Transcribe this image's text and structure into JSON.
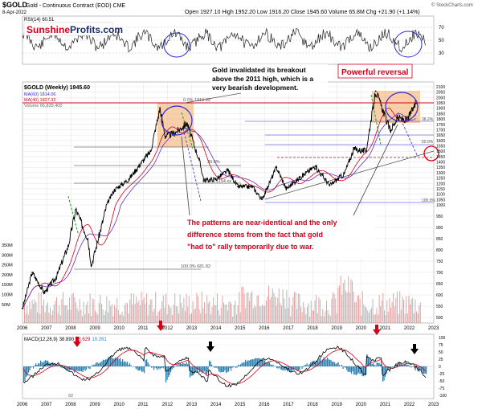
{
  "header": {
    "symbol": "$GOLD",
    "name": "Gold - Continuous Contract (EOD) CME",
    "date": "8-Apr-2022",
    "ohlc": "Open 1927.10  High 1952.20  Low 1916.20  Close 1945.60  Volume 65.8M  Chg +21.90 (+1.14%)",
    "watermark": "© StockCharts.com"
  },
  "brand": {
    "part1": "Sunshine",
    "part2": "Profits.com",
    "color1": "#d4001a",
    "color2": "#1a2b6b"
  },
  "rsi_panel": {
    "label": "RSI(14) 60.51",
    "ticks": [
      "70",
      "50",
      "30"
    ]
  },
  "price_panel": {
    "legend": [
      "$GOLD (Weekly) 1945.60",
      "MA(60) 1814.06",
      "MA(40) 1827.32",
      "Volume 65,839,400"
    ],
    "legend_colors": [
      "#000000",
      "#2b2bd6",
      "#d4001a",
      "#888888"
    ],
    "right_ticks": [
      "2100",
      "2050",
      "2000",
      "1950",
      "1900",
      "1850",
      "1800",
      "1750",
      "1700",
      "1650",
      "1600",
      "1550",
      "1500",
      "1450",
      "1400",
      "1350",
      "1300",
      "1250",
      "1200",
      "1150",
      "1100",
      "1050",
      "1000",
      "950",
      "900",
      "850",
      "800",
      "750",
      "700",
      "650",
      "600",
      "550",
      "500"
    ],
    "volume_ticks": [
      "350M",
      "300M",
      "250M",
      "200M",
      "150M",
      "100M",
      "50M"
    ],
    "fib_labels": [
      "0.0% 1919.09",
      "30.0%",
      "61.8% 1154.xx",
      "100.0% 681.82",
      "38.2%",
      "100.0%",
      "50.0%"
    ],
    "fib_label_positions": [
      "top-left",
      "mid-left",
      "mid",
      "bottom",
      "right",
      "right",
      "right"
    ],
    "x_ticks": [
      "2006",
      "2007",
      "2008",
      "2009",
      "2010",
      "2011",
      "2012",
      "2013",
      "2014",
      "2015",
      "2016",
      "2017",
      "2018",
      "2019",
      "2020",
      "2021",
      "2022",
      "2023"
    ]
  },
  "annotations": {
    "top_note": "Gold invalidated its breakout above the 2011 high, which is a very bearish development.",
    "reversal": "Powerful reversal",
    "pattern_note": "The patterns are near-identical and the only difference stems from the fact that gold \"had to\" rally temporarily due to war."
  },
  "macd_panel": {
    "label_prefix": "MACD(12,26,9)",
    "macd": "38.890",
    "signal": "28.629",
    "histogram": "10.261",
    "ticks": [
      "100",
      "75",
      "50",
      "25",
      "0",
      "-25",
      "-50",
      "-75",
      "-100"
    ],
    "x_ticks": [
      "2006",
      "2007",
      "2008",
      "2009",
      "2010",
      "2011",
      "2012",
      "2013",
      "2014",
      "2015",
      "2016",
      "2017",
      "2018",
      "2019",
      "2020",
      "2021",
      "2022",
      "2023"
    ],
    "bottom_note": "92"
  },
  "colors": {
    "red": "#d4001a",
    "blue": "#1a2b6b",
    "orange": "#f5b67a",
    "grid": "#d9d9d9"
  },
  "chart_data": {
    "type": "line",
    "x": [
      2006.0,
      2006.4,
      2006.9,
      2007.4,
      2007.9,
      2008.2,
      2008.7,
      2008.85,
      2009.3,
      2009.8,
      2010.4,
      2010.9,
      2011.3,
      2011.68,
      2011.9,
      2012.3,
      2012.8,
      2013.3,
      2013.5,
      2014.0,
      2014.5,
      2014.9,
      2015.5,
      2015.9,
      2016.5,
      2016.9,
      2017.5,
      2018.1,
      2018.7,
      2019.3,
      2019.7,
      2020.2,
      2020.6,
      2020.9,
      2021.2,
      2021.5,
      2021.9,
      2022.15,
      2022.27
    ],
    "series": [
      {
        "values": [
          540,
          700,
          610,
          680,
          820,
          980,
          850,
          730,
          920,
          1140,
          1240,
          1390,
          1500,
          1900,
          1640,
          1670,
          1760,
          1420,
          1230,
          1240,
          1320,
          1170,
          1170,
          1050,
          1350,
          1150,
          1260,
          1360,
          1180,
          1290,
          1520,
          1500,
          2060,
          1880,
          1690,
          1810,
          1790,
          1900,
          1945
        ]
      }
    ],
    "xlim": [
      2006,
      2023
    ],
    "ylim": [
      500,
      2100
    ]
  }
}
